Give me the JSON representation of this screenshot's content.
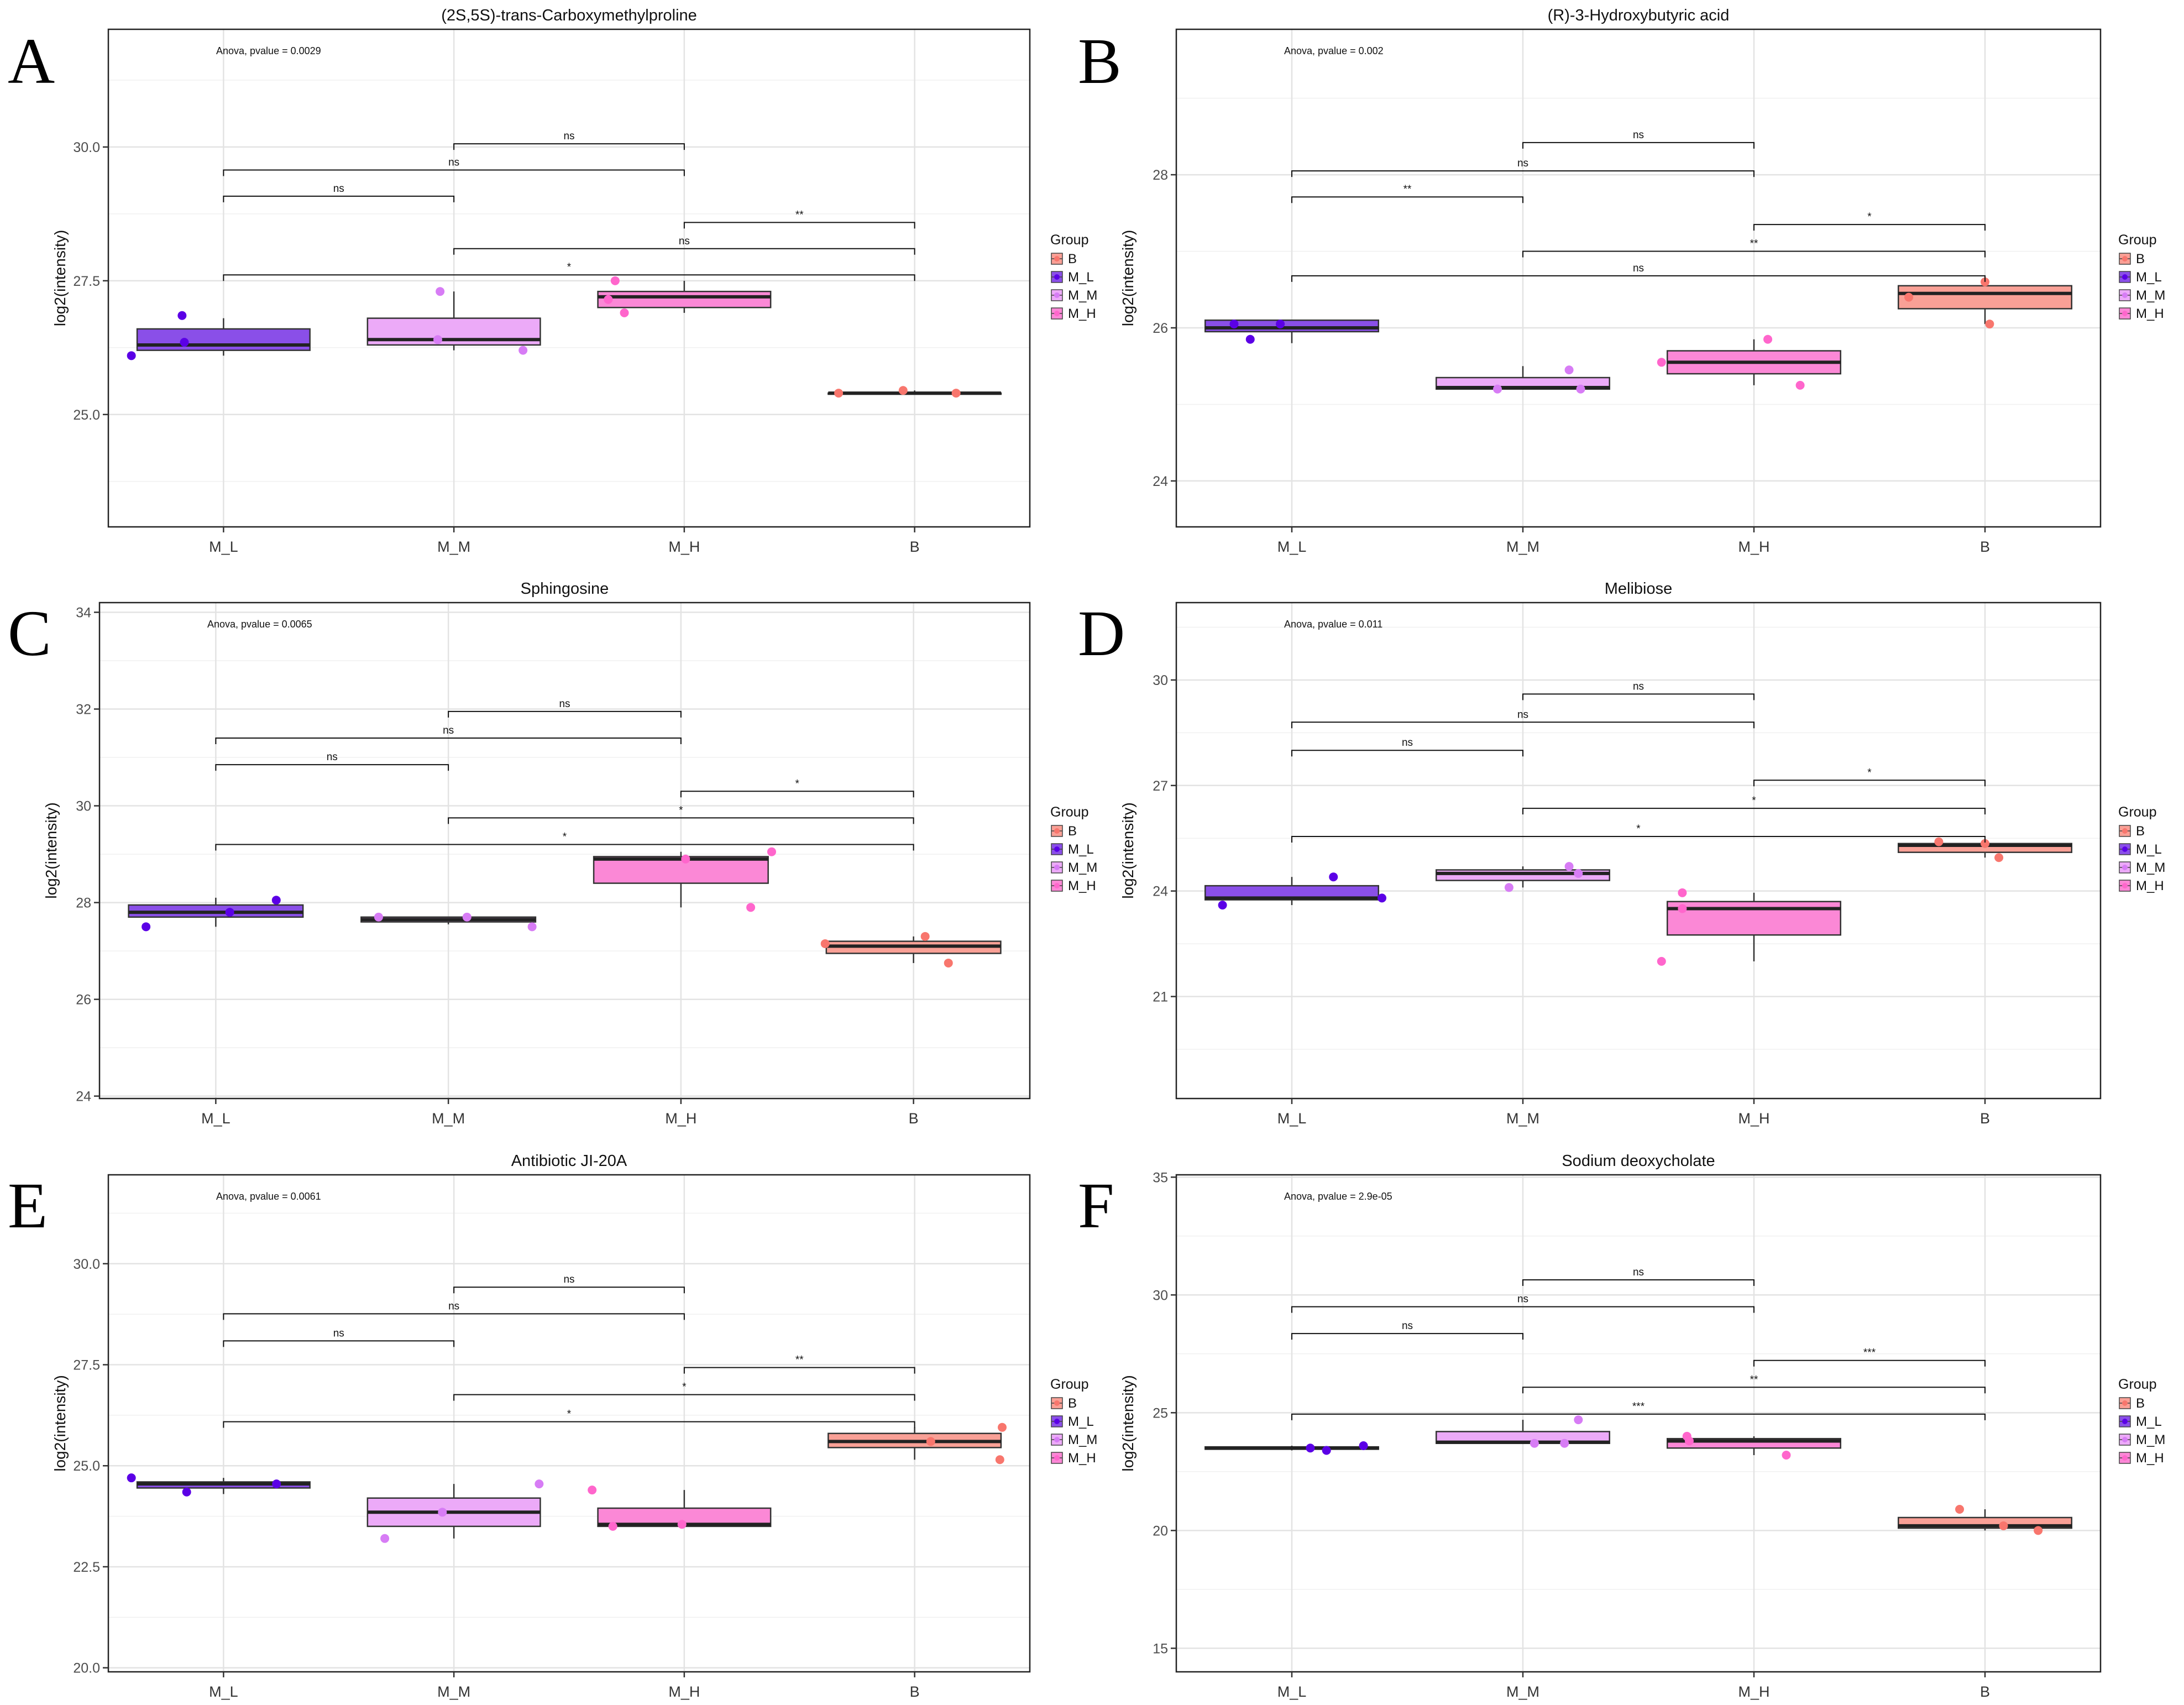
{
  "legend": {
    "title": "Group",
    "items": [
      {
        "key": "B",
        "label": "B"
      },
      {
        "key": "M_L",
        "label": "M_L"
      },
      {
        "key": "M_M",
        "label": "M_M"
      },
      {
        "key": "M_H",
        "label": "M_H"
      }
    ]
  },
  "colors": {
    "B": "#f8766d",
    "M_L": "#5b00e6",
    "M_M": "#d77cf5",
    "M_H": "#ff66cc",
    "B_fill": "#f9a096",
    "M_L_fill": "#8a4fe8",
    "M_M_fill": "#ecaaf8",
    "M_H_fill": "#fb88d6"
  },
  "chart_data": [
    {
      "panel": "A",
      "type": "box",
      "title": "(2S,5S)-trans-Carboxymethylproline",
      "ylabel": "log2(intensity)",
      "xlabel": "",
      "ylim": [
        22.9,
        32.2
      ],
      "yticks": [
        25.0,
        27.5,
        30.0
      ],
      "ytick_labels": [
        "25.0",
        "27.5",
        "30.0"
      ],
      "categories": [
        "M_L",
        "M_M",
        "M_H",
        "B"
      ],
      "anova": "Anova, pvalue = 0.0029",
      "boxes": [
        {
          "group": "M_L",
          "lo": 26.1,
          "q1": 26.2,
          "med": 26.3,
          "q3": 26.6,
          "hi": 26.8
        },
        {
          "group": "M_M",
          "lo": 26.2,
          "q1": 26.3,
          "med": 26.4,
          "q3": 26.8,
          "hi": 27.3
        },
        {
          "group": "M_H",
          "lo": 26.9,
          "q1": 27.0,
          "med": 27.2,
          "q3": 27.3,
          "hi": 27.5
        },
        {
          "group": "B",
          "lo": 25.4,
          "q1": 25.4,
          "med": 25.4,
          "q3": 25.4,
          "hi": 25.45
        }
      ],
      "points": [
        {
          "group": "M_L",
          "dx": -0.4,
          "y": 26.1
        },
        {
          "group": "M_L",
          "dx": -0.18,
          "y": 26.85
        },
        {
          "group": "M_L",
          "dx": -0.17,
          "y": 26.35
        },
        {
          "group": "M_M",
          "dx": -0.06,
          "y": 27.3
        },
        {
          "group": "M_M",
          "dx": -0.07,
          "y": 26.4
        },
        {
          "group": "M_M",
          "dx": 0.3,
          "y": 26.2
        },
        {
          "group": "M_H",
          "dx": -0.3,
          "y": 27.5
        },
        {
          "group": "M_H",
          "dx": -0.33,
          "y": 27.15
        },
        {
          "group": "M_H",
          "dx": -0.26,
          "y": 26.9
        },
        {
          "group": "B",
          "dx": -0.33,
          "y": 25.4
        },
        {
          "group": "B",
          "dx": -0.05,
          "y": 25.45
        },
        {
          "group": "B",
          "dx": 0.18,
          "y": 25.4
        }
      ],
      "brackets": [
        {
          "from": 1,
          "to": 2,
          "y": 30.06,
          "label": "ns"
        },
        {
          "from": 0,
          "to": 2,
          "y": 29.57,
          "label": "ns"
        },
        {
          "from": 0,
          "to": 1,
          "y": 29.08,
          "label": "ns"
        },
        {
          "from": 2,
          "to": 3,
          "y": 28.59,
          "label": "**"
        },
        {
          "from": 1,
          "to": 3,
          "y": 28.1,
          "label": "ns"
        },
        {
          "from": 0,
          "to": 3,
          "y": 27.61,
          "label": "*"
        }
      ]
    },
    {
      "panel": "B",
      "type": "box",
      "title": "(R)-3-Hydroxybutyric acid",
      "ylabel": "log2(intensity)",
      "xlabel": "",
      "ylim": [
        23.4,
        29.9
      ],
      "yticks": [
        24,
        26,
        28
      ],
      "ytick_labels": [
        "24",
        "26",
        "28"
      ],
      "categories": [
        "M_L",
        "M_M",
        "M_H",
        "B"
      ],
      "anova": "Anova, pvalue = 0.002",
      "boxes": [
        {
          "group": "M_L",
          "lo": 25.8,
          "q1": 25.95,
          "med": 26.0,
          "q3": 26.1,
          "hi": 26.1
        },
        {
          "group": "M_M",
          "lo": 25.2,
          "q1": 25.2,
          "med": 25.22,
          "q3": 25.35,
          "hi": 25.5
        },
        {
          "group": "M_H",
          "lo": 25.25,
          "q1": 25.4,
          "med": 25.55,
          "q3": 25.7,
          "hi": 25.85
        },
        {
          "group": "B",
          "lo": 26.05,
          "q1": 26.25,
          "med": 26.45,
          "q3": 26.55,
          "hi": 26.6
        }
      ],
      "points": [
        {
          "group": "M_L",
          "dx": -0.25,
          "y": 26.05
        },
        {
          "group": "M_L",
          "dx": -0.18,
          "y": 25.85
        },
        {
          "group": "M_L",
          "dx": -0.05,
          "y": 26.05
        },
        {
          "group": "M_M",
          "dx": -0.11,
          "y": 25.2
        },
        {
          "group": "M_M",
          "dx": 0.2,
          "y": 25.45
        },
        {
          "group": "M_M",
          "dx": 0.25,
          "y": 25.2
        },
        {
          "group": "M_H",
          "dx": -0.4,
          "y": 25.55
        },
        {
          "group": "M_H",
          "dx": 0.06,
          "y": 25.85
        },
        {
          "group": "M_H",
          "dx": 0.2,
          "y": 25.25
        },
        {
          "group": "B",
          "dx": -0.33,
          "y": 26.4
        },
        {
          "group": "B",
          "dx": 0.0,
          "y": 26.6
        },
        {
          "group": "B",
          "dx": 0.02,
          "y": 26.05
        }
      ],
      "brackets": [
        {
          "from": 1,
          "to": 2,
          "y": 28.42,
          "label": "ns"
        },
        {
          "from": 0,
          "to": 2,
          "y": 28.05,
          "label": "ns"
        },
        {
          "from": 0,
          "to": 1,
          "y": 27.71,
          "label": "**"
        },
        {
          "from": 2,
          "to": 3,
          "y": 27.35,
          "label": "*"
        },
        {
          "from": 1,
          "to": 3,
          "y": 27.0,
          "label": "**"
        },
        {
          "from": 0,
          "to": 3,
          "y": 26.68,
          "label": "ns"
        }
      ]
    },
    {
      "panel": "C",
      "type": "box",
      "title": "Sphingosine",
      "ylabel": "log2(intensity)",
      "xlabel": "",
      "ylim": [
        23.95,
        34.2
      ],
      "yticks": [
        24,
        26,
        28,
        30,
        32,
        34
      ],
      "ytick_labels": [
        "24",
        "26",
        "28",
        "30",
        "32",
        "34"
      ],
      "categories": [
        "M_L",
        "M_M",
        "M_H",
        "B"
      ],
      "anova": "Anova, pvalue = 0.0065",
      "boxes": [
        {
          "group": "M_L",
          "lo": 27.5,
          "q1": 27.7,
          "med": 27.8,
          "q3": 27.95,
          "hi": 28.1
        },
        {
          "group": "M_M",
          "lo": 27.55,
          "q1": 27.6,
          "med": 27.65,
          "q3": 27.7,
          "hi": 27.7
        },
        {
          "group": "M_H",
          "lo": 27.9,
          "q1": 28.4,
          "med": 28.9,
          "q3": 28.95,
          "hi": 29.05
        },
        {
          "group": "B",
          "lo": 26.75,
          "q1": 26.95,
          "med": 27.1,
          "q3": 27.2,
          "hi": 27.3
        }
      ],
      "points": [
        {
          "group": "M_L",
          "dx": -0.3,
          "y": 27.5
        },
        {
          "group": "M_L",
          "dx": 0.06,
          "y": 27.8
        },
        {
          "group": "M_L",
          "dx": 0.26,
          "y": 28.05
        },
        {
          "group": "M_M",
          "dx": -0.3,
          "y": 27.7
        },
        {
          "group": "M_M",
          "dx": 0.08,
          "y": 27.7
        },
        {
          "group": "M_M",
          "dx": 0.36,
          "y": 27.5
        },
        {
          "group": "M_H",
          "dx": 0.02,
          "y": 28.9
        },
        {
          "group": "M_H",
          "dx": 0.3,
          "y": 27.9
        },
        {
          "group": "M_H",
          "dx": 0.39,
          "y": 29.05
        },
        {
          "group": "B",
          "dx": -0.38,
          "y": 27.15
        },
        {
          "group": "B",
          "dx": 0.05,
          "y": 27.3
        },
        {
          "group": "B",
          "dx": 0.15,
          "y": 26.75
        }
      ],
      "brackets": [
        {
          "from": 1,
          "to": 2,
          "y": 31.95,
          "label": "ns"
        },
        {
          "from": 0,
          "to": 2,
          "y": 31.4,
          "label": "ns"
        },
        {
          "from": 0,
          "to": 1,
          "y": 30.85,
          "label": "ns"
        },
        {
          "from": 2,
          "to": 3,
          "y": 30.3,
          "label": "*"
        },
        {
          "from": 1,
          "to": 3,
          "y": 29.75,
          "label": "*"
        },
        {
          "from": 0,
          "to": 3,
          "y": 29.2,
          "label": "*"
        }
      ]
    },
    {
      "panel": "D",
      "type": "box",
      "title": "Melibiose",
      "ylabel": "log2(intensity)",
      "xlabel": "",
      "ylim": [
        18.1,
        32.2
      ],
      "yticks": [
        21,
        24,
        27,
        30
      ],
      "ytick_labels": [
        "21",
        "24",
        "27",
        "30"
      ],
      "categories": [
        "M_L",
        "M_M",
        "M_H",
        "B"
      ],
      "anova": "Anova, pvalue = 0.011",
      "boxes": [
        {
          "group": "M_L",
          "lo": 23.6,
          "q1": 23.75,
          "med": 23.8,
          "q3": 24.15,
          "hi": 24.4
        },
        {
          "group": "M_M",
          "lo": 24.1,
          "q1": 24.3,
          "med": 24.5,
          "q3": 24.6,
          "hi": 24.7
        },
        {
          "group": "M_H",
          "lo": 22.0,
          "q1": 22.75,
          "med": 23.5,
          "q3": 23.7,
          "hi": 23.95
        },
        {
          "group": "B",
          "lo": 24.95,
          "q1": 25.1,
          "med": 25.3,
          "q3": 25.35,
          "hi": 25.4
        }
      ],
      "points": [
        {
          "group": "M_L",
          "dx": -0.3,
          "y": 23.6
        },
        {
          "group": "M_L",
          "dx": 0.18,
          "y": 24.4
        },
        {
          "group": "M_L",
          "dx": 0.39,
          "y": 23.8
        },
        {
          "group": "M_M",
          "dx": -0.06,
          "y": 24.1
        },
        {
          "group": "M_M",
          "dx": 0.2,
          "y": 24.7
        },
        {
          "group": "M_M",
          "dx": 0.24,
          "y": 24.5
        },
        {
          "group": "M_H",
          "dx": -0.4,
          "y": 22.0
        },
        {
          "group": "M_H",
          "dx": -0.31,
          "y": 23.95
        },
        {
          "group": "M_H",
          "dx": -0.31,
          "y": 23.5
        },
        {
          "group": "B",
          "dx": -0.2,
          "y": 25.4
        },
        {
          "group": "B",
          "dx": 0.0,
          "y": 25.35
        },
        {
          "group": "B",
          "dx": 0.06,
          "y": 24.95
        }
      ],
      "brackets": [
        {
          "from": 1,
          "to": 2,
          "y": 29.6,
          "label": "ns"
        },
        {
          "from": 0,
          "to": 2,
          "y": 28.8,
          "label": "ns"
        },
        {
          "from": 0,
          "to": 1,
          "y": 28.0,
          "label": "ns"
        },
        {
          "from": 2,
          "to": 3,
          "y": 27.15,
          "label": "*"
        },
        {
          "from": 1,
          "to": 3,
          "y": 26.35,
          "label": "*"
        },
        {
          "from": 0,
          "to": 3,
          "y": 25.55,
          "label": "*"
        }
      ]
    },
    {
      "panel": "E",
      "type": "box",
      "title": "Antibiotic JI-20A",
      "ylabel": "log2(intensity)",
      "xlabel": "",
      "ylim": [
        19.9,
        32.2
      ],
      "yticks": [
        20.0,
        22.5,
        25.0,
        27.5,
        30.0
      ],
      "ytick_labels": [
        "20.0",
        "22.5",
        "25.0",
        "27.5",
        "30.0"
      ],
      "categories": [
        "M_L",
        "M_M",
        "M_H",
        "B"
      ],
      "anova": "Anova, pvalue = 0.0061",
      "boxes": [
        {
          "group": "M_L",
          "lo": 24.3,
          "q1": 24.45,
          "med": 24.55,
          "q3": 24.6,
          "hi": 24.7
        },
        {
          "group": "M_M",
          "lo": 23.2,
          "q1": 23.5,
          "med": 23.85,
          "q3": 24.2,
          "hi": 24.55
        },
        {
          "group": "M_H",
          "lo": 23.5,
          "q1": 23.5,
          "med": 23.55,
          "q3": 23.95,
          "hi": 24.4
        },
        {
          "group": "B",
          "lo": 25.15,
          "q1": 25.45,
          "med": 25.6,
          "q3": 25.8,
          "hi": 25.95
        }
      ],
      "points": [
        {
          "group": "M_L",
          "dx": -0.4,
          "y": 24.7
        },
        {
          "group": "M_L",
          "dx": -0.16,
          "y": 24.35
        },
        {
          "group": "M_L",
          "dx": 0.23,
          "y": 24.55
        },
        {
          "group": "M_M",
          "dx": -0.3,
          "y": 23.2
        },
        {
          "group": "M_M",
          "dx": -0.05,
          "y": 23.85
        },
        {
          "group": "M_M",
          "dx": 0.37,
          "y": 24.55
        },
        {
          "group": "M_H",
          "dx": -0.4,
          "y": 24.4
        },
        {
          "group": "M_H",
          "dx": -0.31,
          "y": 23.5
        },
        {
          "group": "M_H",
          "dx": -0.01,
          "y": 23.55
        },
        {
          "group": "B",
          "dx": 0.07,
          "y": 25.6
        },
        {
          "group": "B",
          "dx": 0.38,
          "y": 25.95
        },
        {
          "group": "B",
          "dx": 0.37,
          "y": 25.15
        }
      ],
      "brackets": [
        {
          "from": 1,
          "to": 2,
          "y": 29.42,
          "label": "ns"
        },
        {
          "from": 0,
          "to": 2,
          "y": 28.76,
          "label": "ns"
        },
        {
          "from": 0,
          "to": 1,
          "y": 28.09,
          "label": "ns"
        },
        {
          "from": 2,
          "to": 3,
          "y": 27.43,
          "label": "**"
        },
        {
          "from": 1,
          "to": 3,
          "y": 26.76,
          "label": "*"
        },
        {
          "from": 0,
          "to": 3,
          "y": 26.09,
          "label": "*"
        }
      ]
    },
    {
      "panel": "F",
      "type": "box",
      "title": "Sodium deoxycholate",
      "ylabel": "log2(intensity)",
      "xlabel": "",
      "ylim": [
        14.0,
        35.1
      ],
      "yticks": [
        15,
        20,
        25,
        30,
        35
      ],
      "ytick_labels": [
        "15",
        "20",
        "25",
        "30",
        "35"
      ],
      "categories": [
        "M_L",
        "M_M",
        "M_H",
        "B"
      ],
      "anova": "Anova, pvalue = 2.9e-05",
      "boxes": [
        {
          "group": "M_L",
          "lo": 23.4,
          "q1": 23.45,
          "med": 23.5,
          "q3": 23.55,
          "hi": 23.6
        },
        {
          "group": "M_M",
          "lo": 23.7,
          "q1": 23.7,
          "med": 23.75,
          "q3": 24.2,
          "hi": 24.7
        },
        {
          "group": "M_H",
          "lo": 23.2,
          "q1": 23.5,
          "med": 23.8,
          "q3": 23.9,
          "hi": 24.0
        },
        {
          "group": "B",
          "lo": 20.0,
          "q1": 20.1,
          "med": 20.2,
          "q3": 20.55,
          "hi": 20.9
        }
      ],
      "points": [
        {
          "group": "M_L",
          "dx": 0.08,
          "y": 23.5
        },
        {
          "group": "M_L",
          "dx": 0.15,
          "y": 23.4
        },
        {
          "group": "M_L",
          "dx": 0.31,
          "y": 23.6
        },
        {
          "group": "M_M",
          "dx": 0.05,
          "y": 23.7
        },
        {
          "group": "M_M",
          "dx": 0.18,
          "y": 23.7
        },
        {
          "group": "M_M",
          "dx": 0.24,
          "y": 24.7
        },
        {
          "group": "M_H",
          "dx": -0.29,
          "y": 24.0
        },
        {
          "group": "M_H",
          "dx": -0.28,
          "y": 23.8
        },
        {
          "group": "M_H",
          "dx": 0.14,
          "y": 23.2
        },
        {
          "group": "B",
          "dx": -0.11,
          "y": 20.9
        },
        {
          "group": "B",
          "dx": 0.08,
          "y": 20.2
        },
        {
          "group": "B",
          "dx": 0.23,
          "y": 20.0
        }
      ],
      "brackets": [
        {
          "from": 1,
          "to": 2,
          "y": 30.64,
          "label": "ns"
        },
        {
          "from": 0,
          "to": 2,
          "y": 29.5,
          "label": "ns"
        },
        {
          "from": 0,
          "to": 1,
          "y": 28.36,
          "label": "ns"
        },
        {
          "from": 2,
          "to": 3,
          "y": 27.22,
          "label": "***"
        },
        {
          "from": 1,
          "to": 3,
          "y": 26.08,
          "label": "**"
        },
        {
          "from": 0,
          "to": 3,
          "y": 24.94,
          "label": "***"
        }
      ]
    }
  ]
}
